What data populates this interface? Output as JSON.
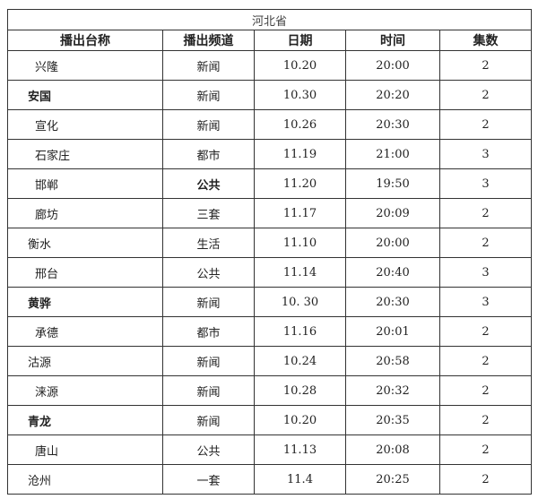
{
  "title": "河北省",
  "headers": [
    "播出台称",
    "播出频道",
    "日期",
    "时间",
    "集数"
  ],
  "rows": [
    {
      "name": "兴隆",
      "channel": "新闻",
      "date": "10.20",
      "time": "20:00",
      "episodes": "2"
    },
    {
      "name": "安国",
      "channel": "新闻",
      "date": "10.30",
      "time": "20:20",
      "episodes": "2"
    },
    {
      "name": "宣化",
      "channel": "新闻",
      "date": "10.26",
      "time": "20:30",
      "episodes": "2"
    },
    {
      "name": "石家庄",
      "channel": "都市",
      "date": "11.19",
      "time": "21:00",
      "episodes": "3"
    },
    {
      "name": "邯郸",
      "channel": "公共",
      "date": "11.20",
      "time": "19:50",
      "episodes": "3"
    },
    {
      "name": "廊坊",
      "channel": "三套",
      "date": "11.17",
      "time": "20:09",
      "episodes": "2"
    },
    {
      "name": "衡水",
      "channel": "生活",
      "date": "11.10",
      "time": "20:00",
      "episodes": "2"
    },
    {
      "name": "邢台",
      "channel": "公共",
      "date": "11.14",
      "time": "20:40",
      "episodes": "3"
    },
    {
      "name": "黄骅",
      "channel": "新闻",
      "date": "10. 30",
      "time": "20:30",
      "episodes": "3"
    },
    {
      "name": "承德",
      "channel": "都市",
      "date": "11.16",
      "time": "20:01",
      "episodes": "2"
    },
    {
      "name": "沽源",
      "channel": "新闻",
      "date": "10.24",
      "time": "20:58",
      "episodes": "2"
    },
    {
      "name": "涞源",
      "channel": "新闻",
      "date": "10.28",
      "time": "20:32",
      "episodes": "2"
    },
    {
      "name": "青龙",
      "channel": "新闻",
      "date": "10.20",
      "time": "20:35",
      "episodes": "2"
    },
    {
      "name": "唐山",
      "channel": "公共",
      "date": "11.13",
      "time": "20:08",
      "episodes": "2"
    },
    {
      "name": "沧州",
      "channel": "一套",
      "date": "11.4",
      "time": "20:25",
      "episodes": "2"
    }
  ]
}
